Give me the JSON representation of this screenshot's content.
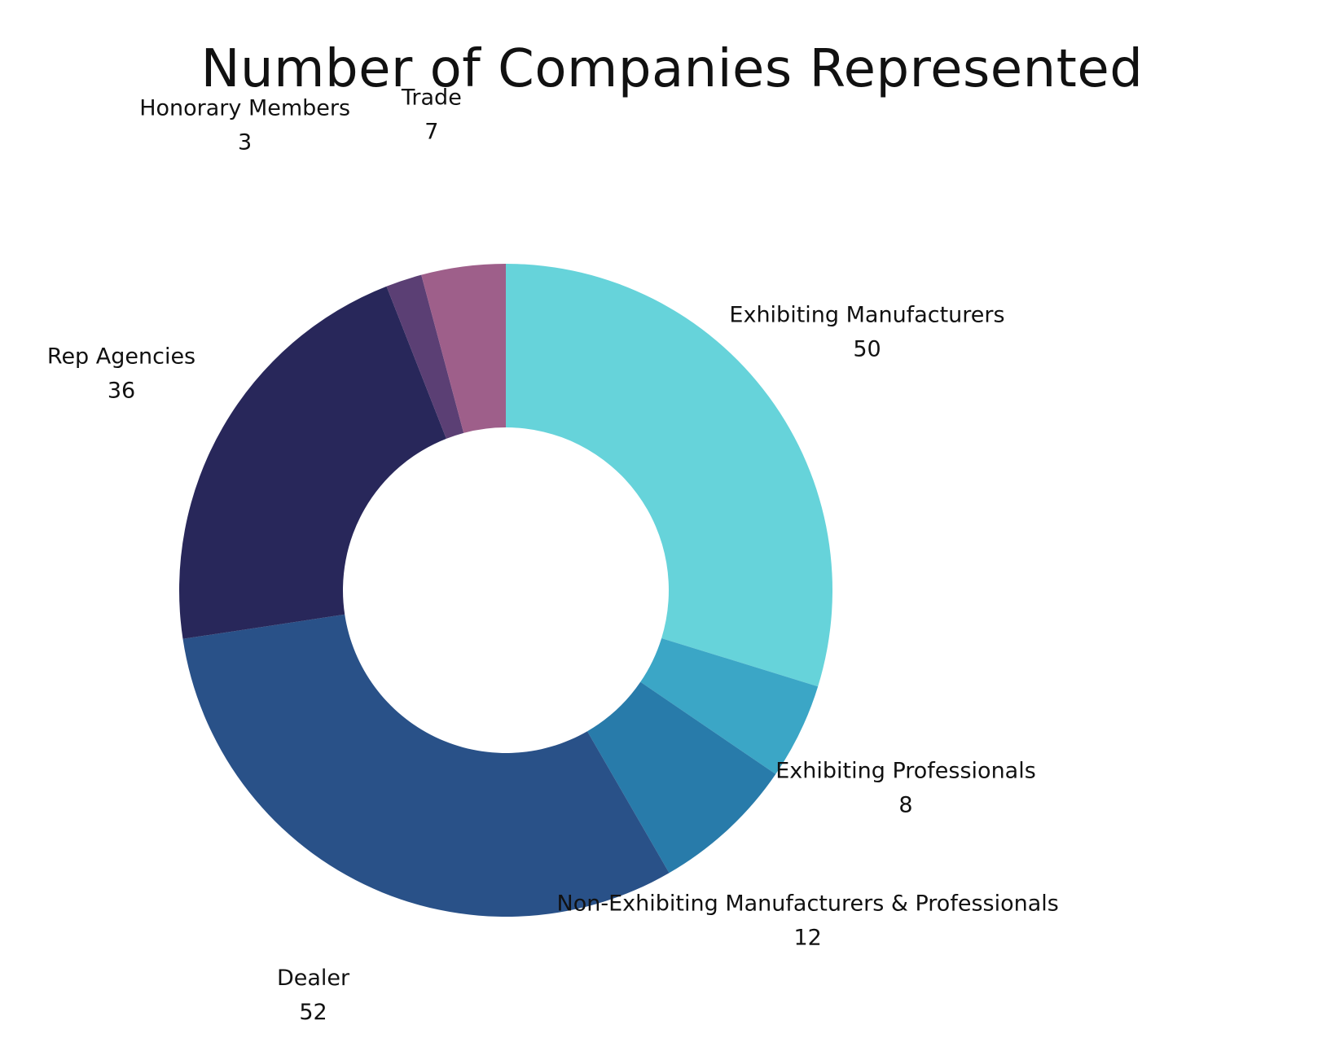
{
  "chart_data": {
    "type": "pie",
    "title": "Number of Companies Represented",
    "donut": true,
    "start_angle_deg": 0,
    "direction": "clockwise",
    "slices": [
      {
        "label": "Exhibiting Manufacturers",
        "value": 50,
        "color": "#66D3DA"
      },
      {
        "label": "Exhibiting Professionals",
        "value": 8,
        "color": "#3BA6C6"
      },
      {
        "label": "Non-Exhibiting Manufacturers & Professionals",
        "value": 12,
        "color": "#287BAA"
      },
      {
        "label": "Dealer",
        "value": 52,
        "color": "#295188"
      },
      {
        "label": "Rep Agencies",
        "value": 36,
        "color": "#28275A"
      },
      {
        "label": "Honorary Members",
        "value": 3,
        "color": "#5B3F74"
      },
      {
        "label": "Trade",
        "value": 7,
        "color": "#9E5F8A"
      }
    ]
  }
}
